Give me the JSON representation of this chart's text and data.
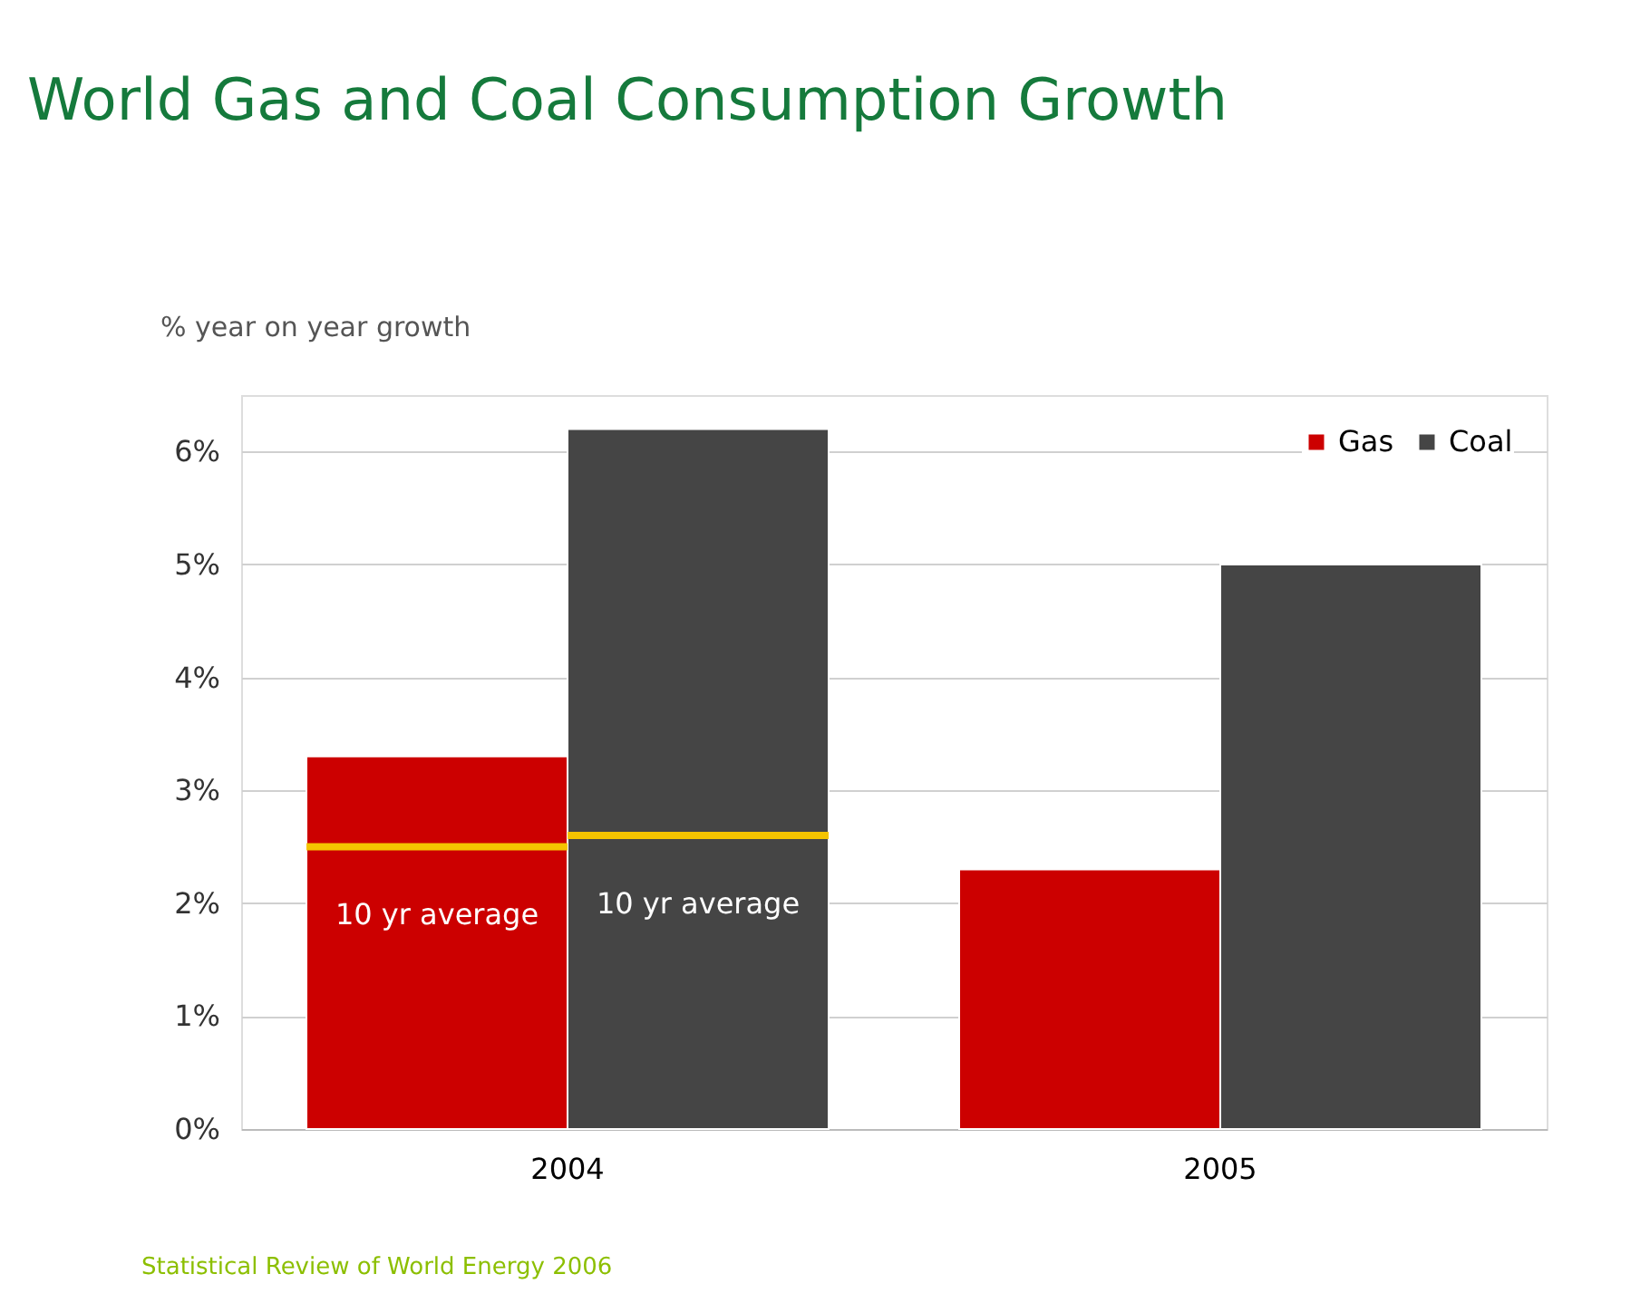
{
  "chart_data": {
    "type": "bar",
    "title": "World Gas and Coal Consumption Growth",
    "ylabel": "% year on year growth",
    "categories": [
      "2004",
      "2005"
    ],
    "series": [
      {
        "name": "Gas",
        "color": "#cc0000",
        "values": [
          3.3,
          2.3
        ]
      },
      {
        "name": "Coal",
        "color": "#454545",
        "values": [
          6.2,
          5.0
        ]
      }
    ],
    "ylim": [
      0,
      6.5
    ],
    "yticks": [
      {
        "value": 0,
        "label": "0%"
      },
      {
        "value": 1,
        "label": "1%"
      },
      {
        "value": 2,
        "label": "2%"
      },
      {
        "value": 3,
        "label": "3%"
      },
      {
        "value": 4,
        "label": "4%"
      },
      {
        "value": 5,
        "label": "5%"
      },
      {
        "value": 6,
        "label": "6%"
      }
    ],
    "grid": "y",
    "legend": "top right",
    "ref_lines": [
      {
        "axis": "y",
        "value": 2.5,
        "label": "10 yr average",
        "color": "#f5c400"
      },
      {
        "axis": "y",
        "value": 2.6,
        "label": "10 yr average",
        "color": "#f5c400"
      }
    ],
    "annotations": [
      "Statistical Review of World Energy 2006"
    ]
  }
}
